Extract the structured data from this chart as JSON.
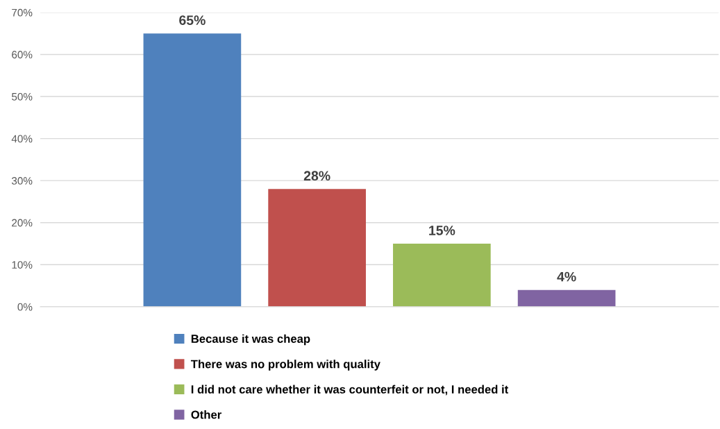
{
  "chart_data": {
    "type": "bar",
    "categories": [
      null
    ],
    "series": [
      {
        "name": "Because it was cheap",
        "color": "#4f81bd",
        "values": [
          65
        ]
      },
      {
        "name": "There was no problem with quality",
        "color": "#c0504d",
        "values": [
          28
        ]
      },
      {
        "name": "I did not care whether it was counterfeit or not, I needed it",
        "color": "#9bbb59",
        "values": [
          15
        ]
      },
      {
        "name": "Other",
        "color": "#8064a2",
        "values": [
          4
        ]
      }
    ],
    "ylim": [
      0,
      70
    ],
    "yticks": [
      {
        "value": 0,
        "label": "0%"
      },
      {
        "value": 10,
        "label": "10%"
      },
      {
        "value": 20,
        "label": "20%"
      },
      {
        "value": 30,
        "label": "30%"
      },
      {
        "value": 40,
        "label": "40%"
      },
      {
        "value": 50,
        "label": "50%"
      },
      {
        "value": 60,
        "label": "60%"
      },
      {
        "value": 70,
        "label": "70%"
      }
    ],
    "value_labels": [
      [
        "65%"
      ],
      [
        "28%"
      ],
      [
        "15%"
      ],
      [
        "4%"
      ]
    ],
    "grid": "y",
    "legend": "bottom",
    "tick_labels": "y"
  }
}
